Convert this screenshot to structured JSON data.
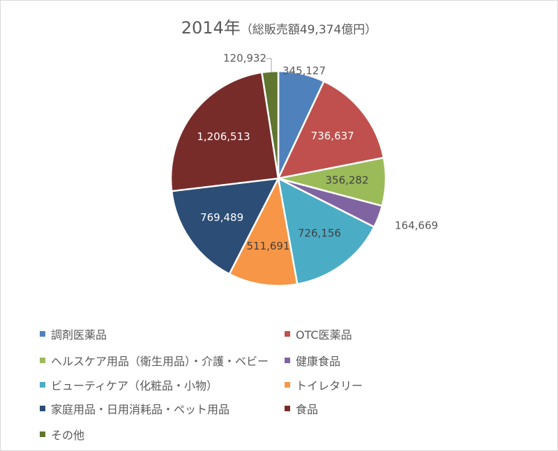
{
  "chart_data": {
    "type": "pie",
    "title": "2014年",
    "subtitle": "（総販売額49,374億円）",
    "legend_position": "bottom",
    "slices": [
      {
        "name": "調剤医薬品",
        "value": 345127,
        "label": "345,127",
        "color": "#4f81bd",
        "label_position": "outside",
        "label_color": "#595959"
      },
      {
        "name": "OTC医薬品",
        "value": 736637,
        "label": "736,637",
        "color": "#c0504d",
        "label_position": "inside",
        "label_color": "#ffffff"
      },
      {
        "name": "ヘルスケア用品（衛生用品）・介護・ベビー",
        "value": 356282,
        "label": "356,282",
        "color": "#9bbb59",
        "label_position": "inside",
        "label_color": "#404040"
      },
      {
        "name": "健康食品",
        "value": 164669,
        "label": "164,669",
        "color": "#8064a2",
        "label_position": "outside",
        "label_color": "#595959"
      },
      {
        "name": "ビューティケア（化粧品・小物）",
        "value": 726156,
        "label": "726,156",
        "color": "#4bacc6",
        "label_position": "inside",
        "label_color": "#404040"
      },
      {
        "name": "トイレタリー",
        "value": 511691,
        "label": "511,691",
        "color": "#f79646",
        "label_position": "inside",
        "label_color": "#404040"
      },
      {
        "name": "家庭用品・日用消耗品・ペット用品",
        "value": 769489,
        "label": "769,489",
        "color": "#2c4d75",
        "label_position": "inside",
        "label_color": "#ffffff"
      },
      {
        "name": "食品",
        "value": 1206513,
        "label": "1,206,513",
        "color": "#772c2a",
        "label_position": "inside",
        "label_color": "#ffffff"
      },
      {
        "name": "その他",
        "value": 120932,
        "label": "120,932",
        "color": "#5f7530",
        "label_position": "outside",
        "label_color": "#595959"
      }
    ]
  }
}
